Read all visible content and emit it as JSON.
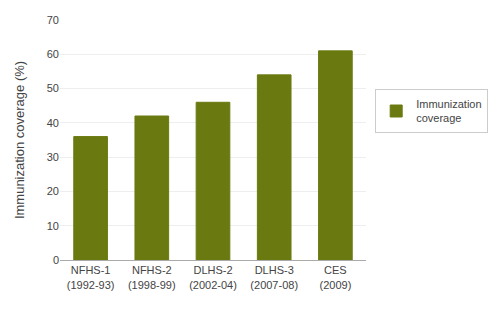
{
  "chart_data": {
    "type": "bar",
    "categories": [
      "NFHS-1\n(1992-93)",
      "NFHS-2\n(1998-99)",
      "DLHS-2\n(2002-04)",
      "DLHS-3\n(2007-08)",
      "CES\n(2009)"
    ],
    "series": [
      {
        "name": "Immunization\ncoverage",
        "color": "#6b7a10",
        "values": [
          36,
          42,
          46,
          54,
          61
        ]
      }
    ],
    "ylabel": "Immunization coverage (%)",
    "ylim": [
      0,
      70
    ],
    "yticks": [
      0,
      10,
      20,
      30,
      40,
      50,
      60,
      70
    ],
    "grid": true,
    "legend": "right"
  }
}
